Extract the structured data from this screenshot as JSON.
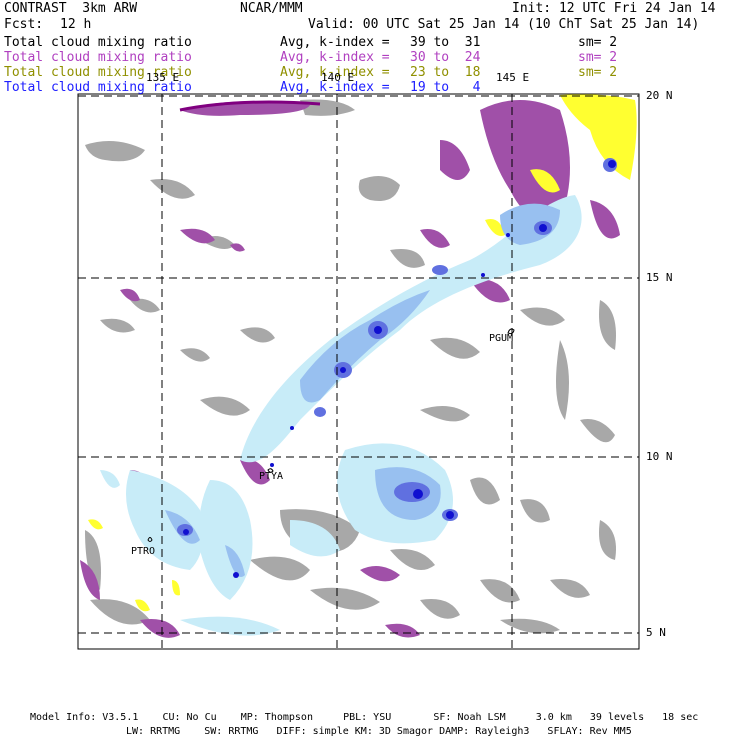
{
  "header": {
    "model": "CONTRAST  3km ARW",
    "org": "NCAR/MMM",
    "init": "Init: 12 UTC Fri 24 Jan 14",
    "fcst_label": "Fcst:",
    "fcst_value": "12 h",
    "valid": "Valid: 00 UTC Sat 25 Jan 14 (10 ChT Sat 25 Jan 14)"
  },
  "legend": [
    {
      "name": "Total cloud mixing ratio",
      "avg": "Avg, k-index =",
      "range": "39 to  31",
      "sm": "sm= 2",
      "color": "#000000"
    },
    {
      "name": "Total cloud mixing ratio",
      "avg": "Avg, k-index =",
      "range": "30 to  24",
      "sm": "sm= 2",
      "color": "#b040c0"
    },
    {
      "name": "Total cloud mixing ratio",
      "avg": "Avg, k-index =",
      "range": "23 to  18",
      "sm": "sm= 2",
      "color": "#909000"
    },
    {
      "name": "Total cloud mixing ratio",
      "avg": "Avg, k-index =",
      "range": "19 to   4",
      "sm": "",
      "color": "#2020ff"
    }
  ],
  "axes": {
    "lon_labels": [
      "135 E",
      "140 E",
      "145 E"
    ],
    "lat_labels": [
      "20 N",
      "15 N",
      "10 N",
      "5 N"
    ]
  },
  "stations": [
    "PGUM",
    "PTYA",
    "PTRO"
  ],
  "colors": {
    "gray": "#a8a8a8",
    "purple": "#a050a8",
    "yellow": "#ffff30",
    "lightblue": "#c8ecf8",
    "midblue": "#98c0f0",
    "blue": "#6070e0",
    "darkblue": "#1010d0"
  },
  "footer": {
    "line1": "Model Info: V3.5.1    CU: No Cu    MP: Thompson     PBL: YSU       SF: Noah LSM     3.0 km   39 levels   18 sec",
    "line2": "LW: RRTMG    SW: RRTMG   DIFF: simple KM: 3D Smagor DAMP: Rayleigh3   SFLAY: Rev MM5"
  }
}
